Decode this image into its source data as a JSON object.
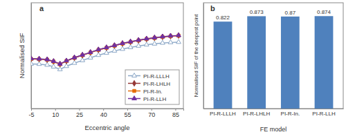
{
  "chart_data": [
    {
      "type": "line",
      "title": "a",
      "x_label": "Eccentric angle",
      "y_label": "Normalised SIF",
      "x": [
        -5,
        0,
        5,
        9,
        13,
        17,
        22,
        27,
        32,
        37,
        42,
        47,
        52,
        57,
        62,
        67,
        72,
        77,
        82,
        87
      ],
      "xlim": [
        -5,
        90
      ],
      "xticks": [
        -5,
        10,
        25,
        40,
        55,
        70,
        85
      ],
      "ylim": [
        0.4,
        1.4
      ],
      "tick_labels": "x",
      "legend": "lower right",
      "series": [
        {
          "name": "PI-R-LLLH",
          "color": "#8ea9c8",
          "marker": "open-triangle",
          "values": [
            0.822,
            0.82,
            0.812,
            0.795,
            0.77,
            0.8,
            0.83,
            0.855,
            0.88,
            0.905,
            0.925,
            0.945,
            0.962,
            0.978,
            0.992,
            1.003,
            1.012,
            1.02,
            1.025,
            1.028
          ]
        },
        {
          "name": "PI-R-LHLH",
          "color": "#953735",
          "marker": "diamond",
          "values": [
            0.87,
            0.868,
            0.862,
            0.845,
            0.82,
            0.85,
            0.88,
            0.905,
            0.93,
            0.955,
            0.975,
            0.995,
            1.015,
            1.03,
            1.045,
            1.058,
            1.068,
            1.078,
            1.085,
            1.09
          ]
        },
        {
          "name": "PI-R-In.",
          "color": "#e46c0a",
          "marker": "square",
          "values": [
            0.868,
            0.867,
            0.861,
            0.844,
            0.819,
            0.849,
            0.879,
            0.904,
            0.929,
            0.954,
            0.974,
            0.994,
            1.014,
            1.029,
            1.044,
            1.057,
            1.067,
            1.077,
            1.084,
            1.089
          ]
        },
        {
          "name": "PI-R-LLH",
          "color": "#7030a0",
          "marker": "triangle",
          "values": [
            0.872,
            0.87,
            0.864,
            0.847,
            0.822,
            0.852,
            0.882,
            0.907,
            0.932,
            0.957,
            0.977,
            0.997,
            1.017,
            1.032,
            1.047,
            1.06,
            1.07,
            1.08,
            1.087,
            1.092
          ]
        }
      ]
    },
    {
      "type": "bar",
      "title": "b",
      "x_label": "FE model",
      "y_label": "Normalised SIF of the deepest point",
      "categories": [
        "PI-R-LLLH",
        "PI-R-LHLH",
        "PI-R-In.",
        "PI-R-LLH"
      ],
      "values": [
        0.822,
        0.873,
        0.87,
        0.874
      ],
      "color": "#4f81bd",
      "ylim": [
        0,
        1
      ],
      "tick_labels": "x",
      "data_labels": true
    }
  ]
}
